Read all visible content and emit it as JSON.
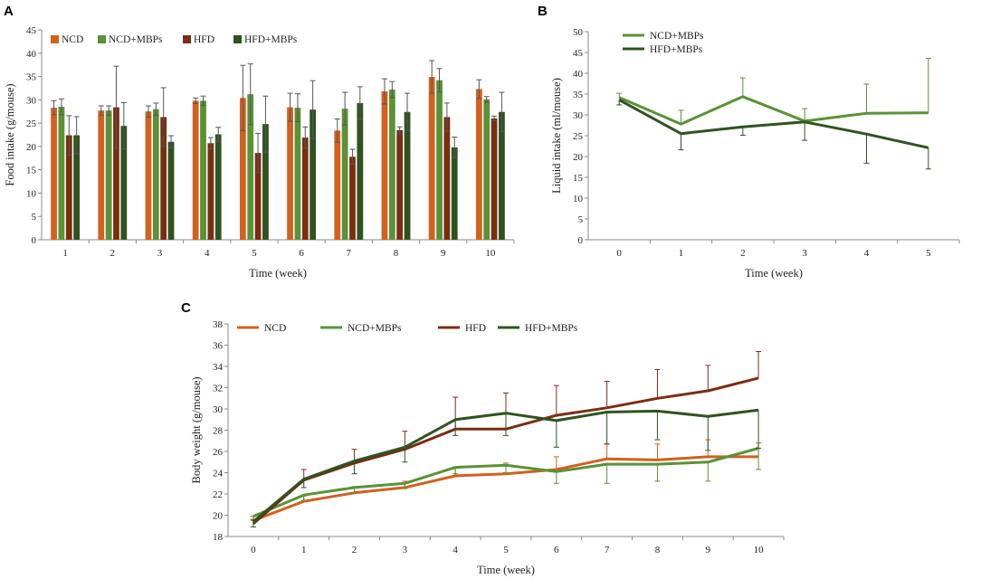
{
  "chart_data": [
    {
      "panel": "A",
      "type": "bar",
      "title": "",
      "xlabel": "Time (week)",
      "ylabel": "Food intake (g/mouse)",
      "ylim": [
        0,
        45
      ],
      "yticks": [
        0,
        5,
        10,
        15,
        20,
        25,
        30,
        35,
        40,
        45
      ],
      "categories": [
        "1",
        "2",
        "3",
        "4",
        "5",
        "6",
        "7",
        "8",
        "9",
        "10"
      ],
      "legend_position": "top-left",
      "series": [
        {
          "name": "NCD",
          "color": "#d2601f",
          "values": [
            28.3,
            27.7,
            27.5,
            29.8,
            30.4,
            28.4,
            23.4,
            31.8,
            34.9,
            32.3
          ],
          "errors": [
            1.5,
            1.0,
            1.2,
            0.6,
            7.0,
            3.0,
            2.5,
            2.7,
            3.5,
            2.0
          ]
        },
        {
          "name": "NCD+MBPs",
          "color": "#5a9237",
          "values": [
            28.5,
            27.7,
            28.0,
            29.8,
            31.2,
            28.3,
            28.1,
            32.2,
            34.2,
            30.1
          ],
          "errors": [
            1.7,
            1.0,
            1.3,
            1.0,
            6.5,
            3.0,
            3.5,
            1.7,
            2.5,
            0.6
          ]
        },
        {
          "name": "HFD",
          "color": "#7b2d12",
          "values": [
            22.4,
            28.4,
            26.3,
            20.7,
            18.6,
            21.9,
            17.8,
            23.5,
            26.3,
            26.0
          ],
          "errors": [
            4.2,
            8.8,
            6.3,
            1.2,
            4.2,
            2.3,
            1.6,
            0.7,
            3.0,
            0.5
          ]
        },
        {
          "name": "HFD+MBPs",
          "color": "#2f5320",
          "values": [
            22.4,
            24.4,
            21.0,
            22.6,
            24.8,
            27.9,
            29.3,
            27.4,
            19.8,
            27.4
          ],
          "errors": [
            4.0,
            5.0,
            1.3,
            1.5,
            6.0,
            6.2,
            3.5,
            4.0,
            2.2,
            4.2
          ]
        }
      ]
    },
    {
      "panel": "B",
      "type": "line",
      "title": "",
      "xlabel": "Time (week)",
      "ylabel": "Liquid intake (ml/mouse)",
      "ylim": [
        0,
        50
      ],
      "yticks": [
        0,
        5,
        10,
        15,
        20,
        25,
        30,
        35,
        40,
        45,
        50
      ],
      "x": [
        0,
        1,
        2,
        3,
        4,
        5
      ],
      "legend_position": "top-left",
      "series": [
        {
          "name": "NCD+MBPs",
          "color": "#5a9237",
          "values": [
            34.2,
            27.8,
            34.4,
            28.5,
            30.4,
            30.5
          ],
          "errors": [
            1.0,
            3.3,
            4.5,
            3.0,
            7.0,
            13.1
          ],
          "error_dir": "up"
        },
        {
          "name": "HFD+MBPs",
          "color": "#2f5320",
          "values": [
            33.6,
            25.5,
            27.1,
            28.3,
            25.4,
            22.1
          ],
          "errors": [
            1.2,
            3.9,
            2.0,
            4.4,
            7.0,
            5.1
          ],
          "error_dir": "down"
        }
      ]
    },
    {
      "panel": "C",
      "type": "line",
      "title": "",
      "xlabel": "Time (week)",
      "ylabel": "Body weight (g/mouse)",
      "ylim": [
        18,
        38
      ],
      "yticks": [
        18,
        20,
        22,
        24,
        26,
        28,
        30,
        32,
        34,
        36,
        38
      ],
      "x": [
        0,
        1,
        2,
        3,
        4,
        5,
        6,
        7,
        8,
        9,
        10
      ],
      "legend_position": "top-left",
      "series": [
        {
          "name": "NCD",
          "color": "#d2601f",
          "values": [
            19.5,
            21.3,
            22.1,
            22.6,
            23.7,
            23.9,
            24.3,
            25.3,
            25.2,
            25.5,
            25.5
          ],
          "errors": [
            0.4,
            0.5,
            0.6,
            0.6,
            0.8,
            1.0,
            1.2,
            1.4,
            1.5,
            1.6,
            1.3
          ],
          "error_dir": "up"
        },
        {
          "name": "NCD+MBPs",
          "color": "#5a9237",
          "values": [
            19.9,
            21.9,
            22.6,
            23.0,
            24.5,
            24.7,
            24.1,
            24.8,
            24.8,
            25.0,
            26.3
          ],
          "errors": [
            0.4,
            0.5,
            0.5,
            0.5,
            0.6,
            0.7,
            1.1,
            1.8,
            1.6,
            1.8,
            2.0
          ],
          "error_dir": "down"
        },
        {
          "name": "HFD",
          "color": "#7b2d12",
          "values": [
            19.2,
            23.3,
            24.9,
            26.2,
            28.1,
            28.1,
            29.4,
            30.1,
            31.0,
            31.7,
            32.9
          ],
          "errors": [
            0.4,
            1.0,
            1.3,
            1.7,
            3.0,
            3.4,
            2.8,
            2.5,
            2.7,
            2.4,
            2.5
          ],
          "error_dir": "up"
        },
        {
          "name": "HFD+MBPs",
          "color": "#2f5320",
          "values": [
            19.4,
            23.4,
            25.1,
            26.4,
            29.0,
            29.6,
            28.9,
            29.7,
            29.8,
            29.3,
            29.9
          ],
          "errors": [
            0.5,
            0.8,
            1.2,
            1.4,
            1.5,
            2.1,
            2.5,
            3.0,
            2.7,
            3.2,
            3.6
          ],
          "error_dir": "down"
        }
      ]
    }
  ]
}
